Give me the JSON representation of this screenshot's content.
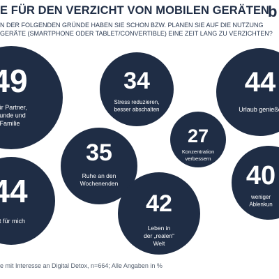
{
  "title": "E FÜR DEN VERZICHT VON MOBILEN GERÄTEN",
  "logo": "b",
  "subtitle_lines": [
    "N DER FOLGENDEN GRÜNDE HABEN SIE SCHON BZW. PLANEN SIE AUF DIE NUTZUNG",
    "GERÄTE (SMARTPHONE ODER TABLET/CONVERTIBLE) EINE ZEIT LANG ZU VERZICHTEN?"
  ],
  "footer": "e mit Interesse an Digital Detox, n=664; Alle Angaben in %",
  "colors": {
    "bubble": "#1f2d45",
    "text": "#ffffff"
  },
  "chart_data": {
    "type": "bubble",
    "unit": "%",
    "items": [
      {
        "value": "49",
        "label": [
          "t für Partner,",
          "reunde und",
          "Familie"
        ]
      },
      {
        "value": "34",
        "label": [
          "Stress reduzieren,",
          "besser abschalten"
        ]
      },
      {
        "value": "44",
        "label": [
          "Urlaub genieße"
        ]
      },
      {
        "value": "27",
        "label": [
          "Konzentration",
          "verbessern"
        ]
      },
      {
        "value": "35",
        "label": [
          "Ruhe an den",
          "Wochenenden"
        ]
      },
      {
        "value": "44",
        "label": [
          "eit für mich"
        ]
      },
      {
        "value": "42",
        "label": [
          "Leben in",
          "der „realen“",
          "Welt"
        ]
      },
      {
        "value": "40",
        "label": [
          "weniger",
          "Ablenkun"
        ]
      }
    ]
  }
}
